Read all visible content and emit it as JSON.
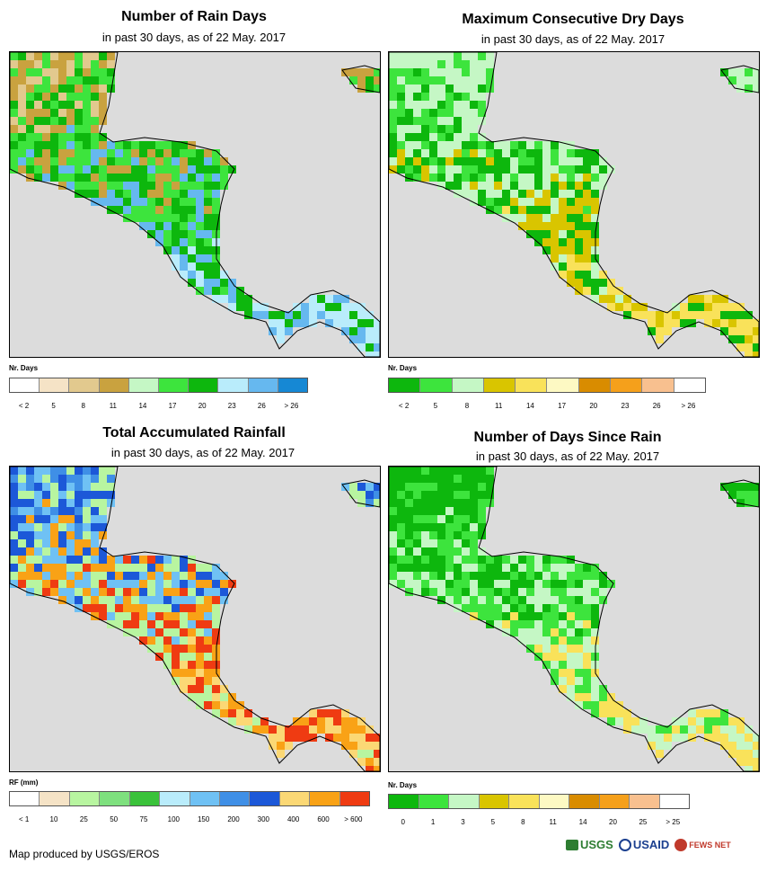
{
  "panels": [
    {
      "title": "Number of Rain Days",
      "subtitle": "in past 30 days, as of 22 May. 2017",
      "legend_title": "Nr. Days",
      "legend_colors": [
        "#ffffff",
        "#f5e3c6",
        "#e2c98e",
        "#c9a23f",
        "#c5f7c5",
        "#3de43d",
        "#0db70d",
        "#b9ecfb",
        "#66b8ef",
        "#1688d4"
      ],
      "legend_ticks": [
        "< 2",
        "5",
        "8",
        "11",
        "14",
        "17",
        "20",
        "23",
        "26",
        "> 26"
      ],
      "palette": [
        "#e2c98e",
        "#c9a23f",
        "#3de43d",
        "#0db70d",
        "#66b8ef",
        "#b9ecfb"
      ]
    },
    {
      "title": "Maximum Consecutive Dry Days",
      "subtitle": "in past 30 days, as of 22 May. 2017",
      "legend_title": "Nr. Days",
      "legend_colors": [
        "#0db70d",
        "#3de43d",
        "#c5f7c5",
        "#d9c500",
        "#f9e25a",
        "#fdf9c3",
        "#d98c00",
        "#f5a01b",
        "#f8c08f",
        "#ffffff"
      ],
      "legend_ticks": [
        "< 2",
        "5",
        "8",
        "11",
        "14",
        "17",
        "20",
        "23",
        "26",
        "> 26"
      ],
      "palette": [
        "#c5f7c5",
        "#3de43d",
        "#c5f7c5",
        "#0db70d",
        "#d9c500",
        "#f9e25a"
      ]
    },
    {
      "title": "Total Accumulated Rainfall",
      "subtitle": "in past 30 days, as of 22 May. 2017",
      "legend_title": "RF (mm)",
      "legend_colors": [
        "#ffffff",
        "#f5e3c6",
        "#b8f5a0",
        "#7ee07e",
        "#3ac23a",
        "#b9ecfb",
        "#6fc1f4",
        "#3f8fe6",
        "#1c58d8",
        "#fbd875",
        "#f9a216",
        "#ef3b12"
      ],
      "legend_ticks": [
        "< 1",
        "10",
        "25",
        "50",
        "75",
        "100",
        "150",
        "200",
        "300",
        "400",
        "600",
        "> 600"
      ],
      "palette": [
        "#3f8fe6",
        "#1c58d8",
        "#6fc1f4",
        "#b8f5a0",
        "#f9a216",
        "#ef3b12",
        "#fbd875"
      ]
    },
    {
      "title": "Number of Days Since Rain",
      "subtitle": "in past 30 days, as of 22 May. 2017",
      "legend_title": "Nr. Days",
      "legend_colors": [
        "#0db70d",
        "#3de43d",
        "#c5f7c5",
        "#d9c500",
        "#f9e25a",
        "#fdf9c3",
        "#d98c00",
        "#f5a01b",
        "#f8c08f",
        "#ffffff"
      ],
      "legend_ticks": [
        "0",
        "1",
        "3",
        "5",
        "8",
        "11",
        "14",
        "20",
        "25",
        "> 25"
      ],
      "palette": [
        "#0db70d",
        "#0db70d",
        "#3de43d",
        "#c5f7c5",
        "#f9e25a"
      ]
    }
  ],
  "footer": {
    "text": "Map produced by USGS/EROS"
  },
  "logos": {
    "usgs": "USGS",
    "usaid": "USAID",
    "fews": "FEWS NET"
  }
}
